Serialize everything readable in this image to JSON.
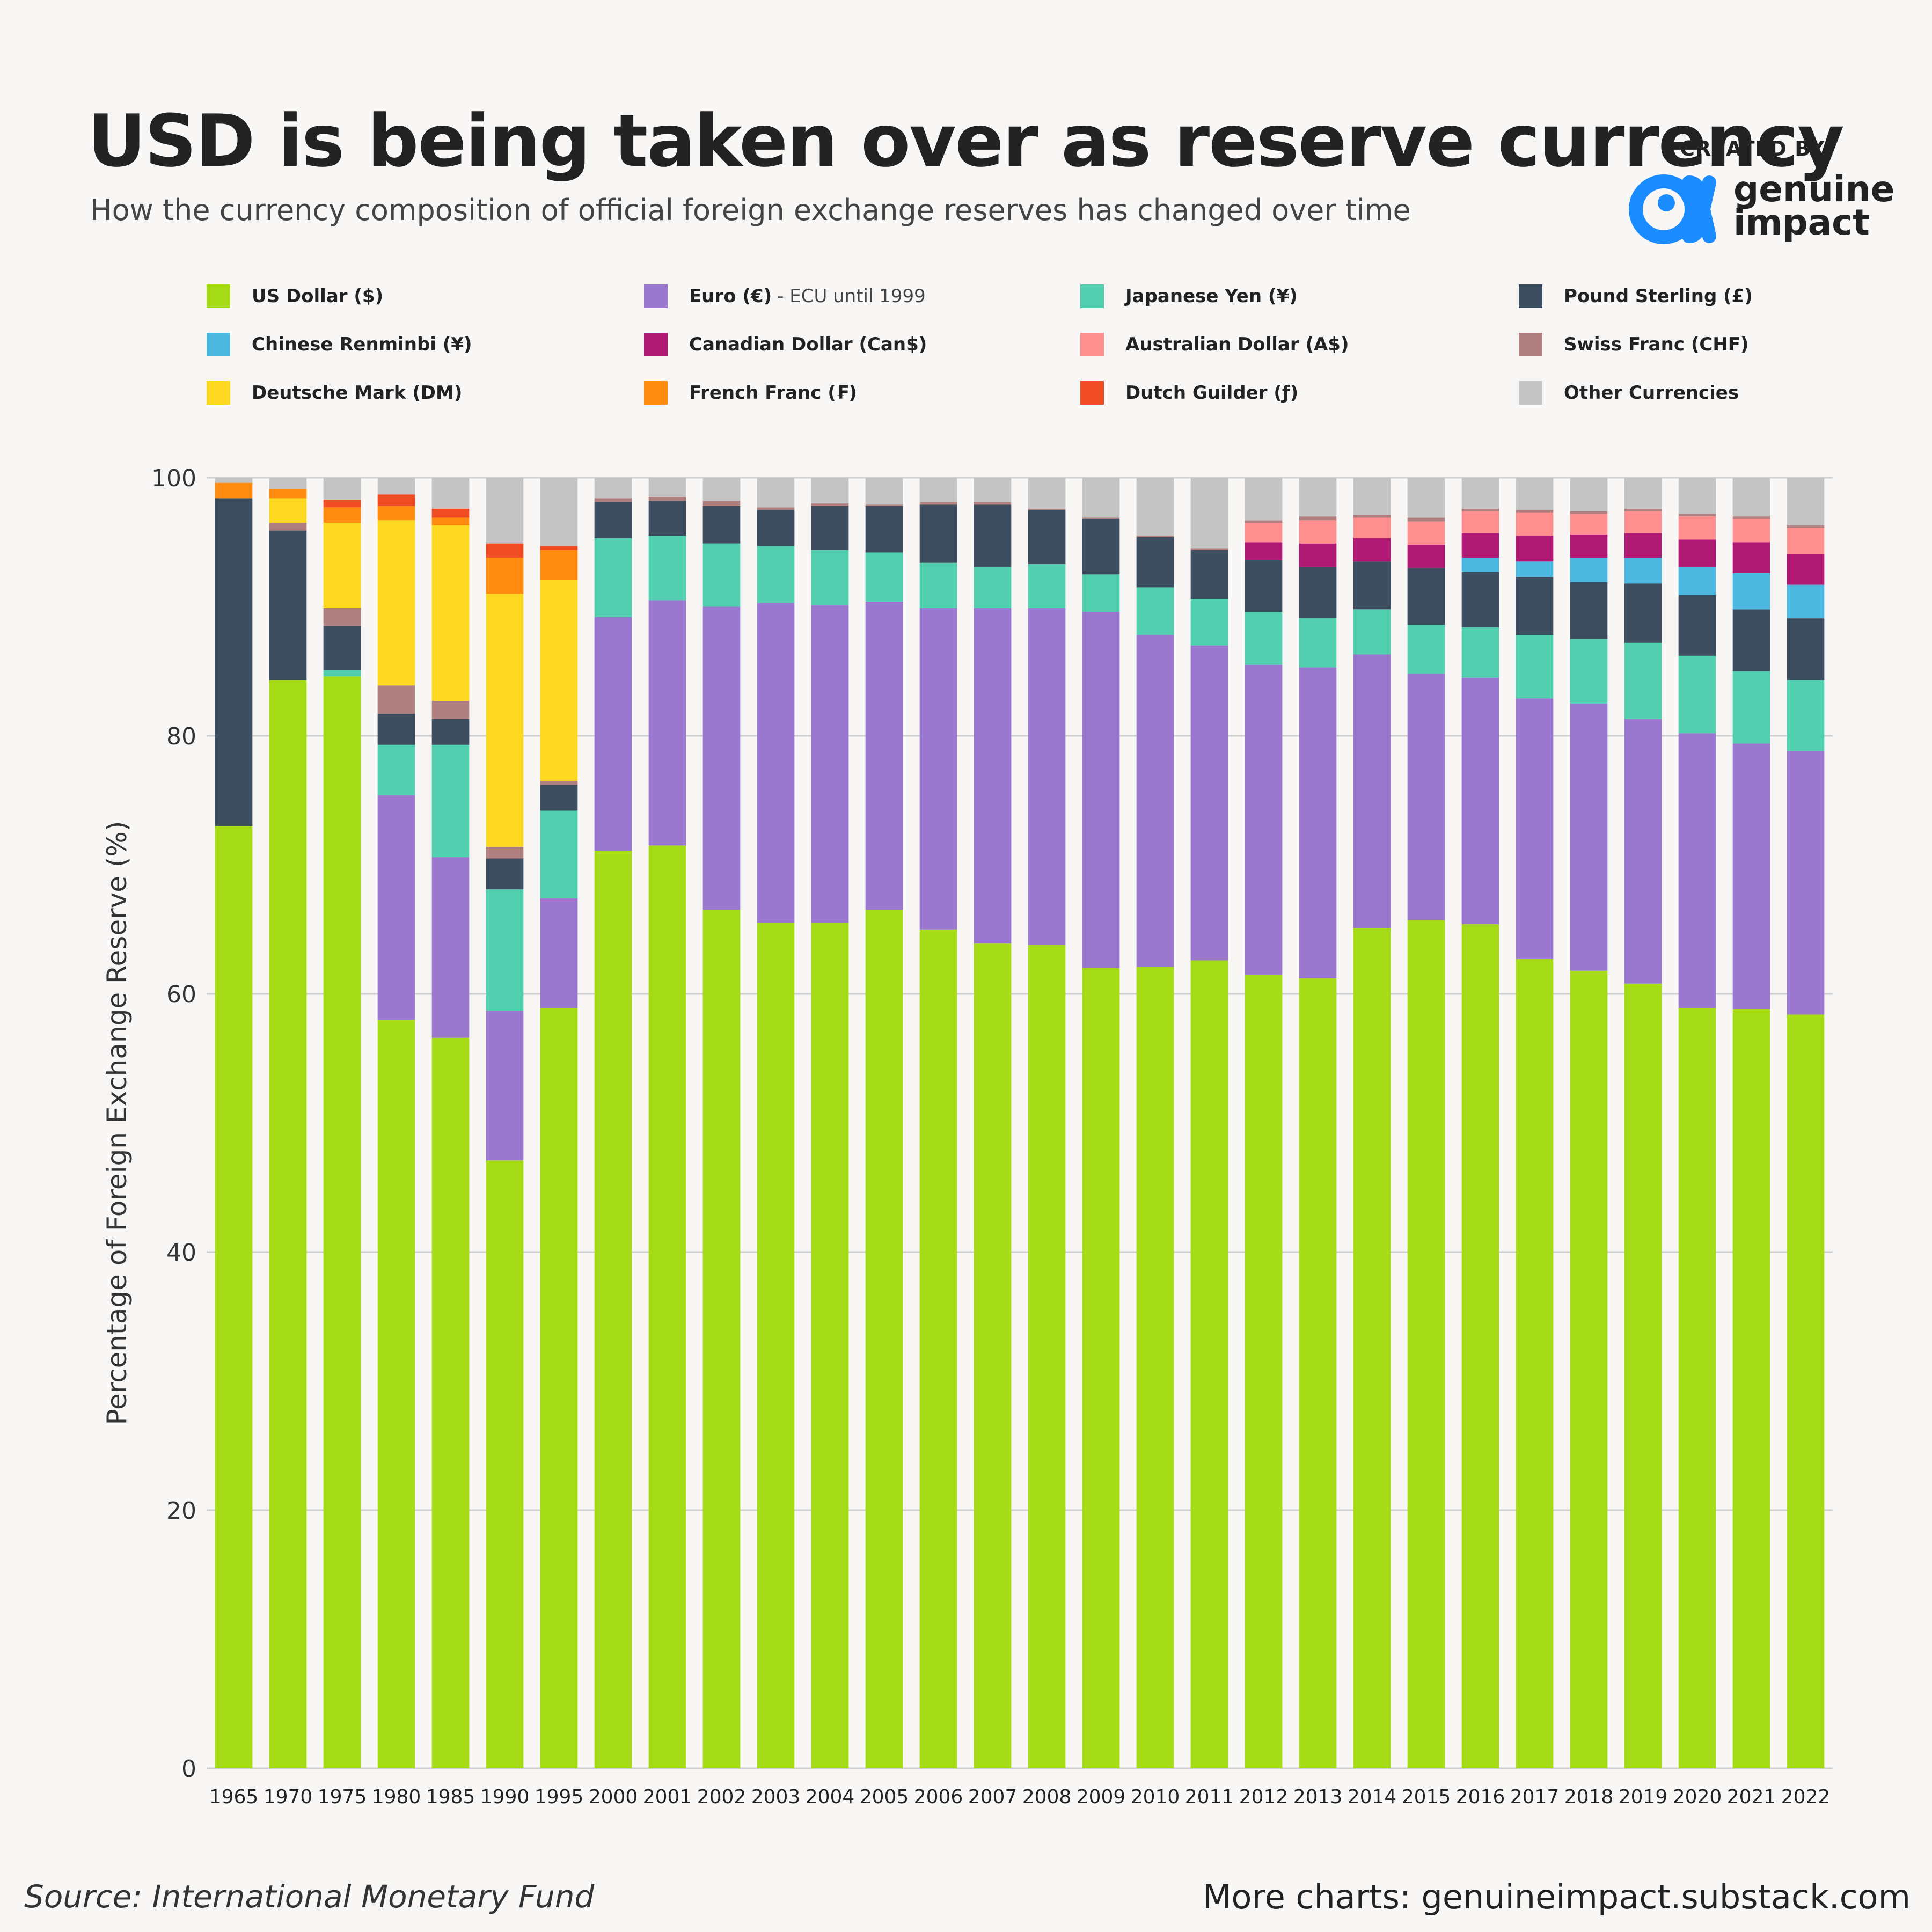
{
  "header": {
    "title": "USD is being taken over as reserve currency",
    "subtitle": "How the currency composition of official foreign exchange reserves has changed over time",
    "created_by": "CREATED BY",
    "brand_line1": "genuine",
    "brand_line2": "impact",
    "brand_color": "#1a8cff"
  },
  "footer": {
    "source": "Source: International Monetary Fund",
    "more": "More charts: genuineimpact.substack.com"
  },
  "legend": [
    {
      "label": "US Dollar ($)",
      "note": "",
      "color": "#a6dc17"
    },
    {
      "label": "Euro (€)",
      "note": "- ECU until 1999",
      "color": "#9b78d0"
    },
    {
      "label": "Japanese Yen (¥)",
      "note": "",
      "color": "#52cfaf"
    },
    {
      "label": "Pound Sterling (£)",
      "note": "",
      "color": "#3c4d5f"
    },
    {
      "label": "Chinese Renminbi (¥)",
      "note": "",
      "color": "#4cb8e0"
    },
    {
      "label": "Canadian Dollar (Can$)",
      "note": "",
      "color": "#b01a74"
    },
    {
      "label": "Australian Dollar (A$)",
      "note": "",
      "color": "#ff8f8f"
    },
    {
      "label": "Swiss Franc (CHF)",
      "note": "",
      "color": "#b08080"
    },
    {
      "label": "Deutsche Mark (DM)",
      "note": "",
      "color": "#fcd920"
    },
    {
      "label": "French Franc (₣)",
      "note": "",
      "color": "#ff8c10"
    },
    {
      "label": "Dutch Guilder (ƒ)",
      "note": "",
      "color": "#f04c24"
    },
    {
      "label": "Other Currencies",
      "note": "",
      "color": "#c4c4c4"
    }
  ],
  "chart_data": {
    "type": "bar",
    "stacked": true,
    "ylabel": "Percentage of Foreign Exchange Reserve (%)",
    "ylim": [
      0,
      100
    ],
    "yticks": [
      0,
      20,
      40,
      60,
      80,
      100
    ],
    "grid": true,
    "legend_position": "top",
    "categories": [
      "1965",
      "1970",
      "1975",
      "1980",
      "1985",
      "1990",
      "1995",
      "2000",
      "2001",
      "2002",
      "2003",
      "2004",
      "2005",
      "2006",
      "2007",
      "2008",
      "2009",
      "2010",
      "2011",
      "2012",
      "2013",
      "2014",
      "2015",
      "2016",
      "2017",
      "2018",
      "2019",
      "2020",
      "2021",
      "2022"
    ],
    "series": [
      {
        "name": "US Dollar ($)",
        "color": "#a6dc17",
        "values": [
          73.0,
          84.3,
          84.6,
          58.0,
          56.6,
          47.1,
          58.9,
          71.1,
          71.5,
          66.5,
          65.5,
          65.5,
          66.5,
          65.0,
          63.9,
          63.8,
          62.0,
          62.1,
          62.6,
          61.5,
          61.2,
          65.1,
          65.7,
          65.4,
          62.7,
          61.8,
          60.8,
          58.9,
          58.8,
          58.4
        ]
      },
      {
        "name": "Euro (€)",
        "color": "#9b78d0",
        "values": [
          0,
          0,
          0,
          17.4,
          14.0,
          11.6,
          8.5,
          18.1,
          19.0,
          23.5,
          24.8,
          24.6,
          23.9,
          24.9,
          26.0,
          26.1,
          27.6,
          25.7,
          24.4,
          24.0,
          24.1,
          21.2,
          19.1,
          19.1,
          20.2,
          20.7,
          20.5,
          21.3,
          20.6,
          20.4
        ]
      },
      {
        "name": "Japanese Yen (¥)",
        "color": "#52cfaf",
        "values": [
          0,
          0,
          0.5,
          3.9,
          8.7,
          9.4,
          6.8,
          6.1,
          5.0,
          4.9,
          4.4,
          4.3,
          3.8,
          3.5,
          3.2,
          3.4,
          2.9,
          3.7,
          3.6,
          4.1,
          3.8,
          3.5,
          3.8,
          3.9,
          4.9,
          5.0,
          5.9,
          6.0,
          5.6,
          5.5
        ]
      },
      {
        "name": "Pound Sterling (£)",
        "color": "#3c4d5f",
        "values": [
          25.4,
          11.6,
          3.4,
          2.4,
          2.0,
          2.4,
          2.0,
          2.8,
          2.7,
          2.9,
          2.8,
          3.4,
          3.6,
          4.5,
          4.8,
          4.2,
          4.3,
          3.9,
          3.8,
          4.0,
          4.0,
          3.7,
          4.4,
          4.3,
          4.5,
          4.4,
          4.6,
          4.7,
          4.8,
          4.8
        ]
      },
      {
        "name": "Chinese Renminbi (¥)",
        "color": "#4cb8e0",
        "values": [
          0,
          0,
          0,
          0,
          0,
          0,
          0,
          0,
          0,
          0,
          0,
          0,
          0,
          0,
          0,
          0,
          0,
          0,
          0,
          0,
          0,
          0,
          0,
          1.1,
          1.2,
          1.9,
          2.0,
          2.2,
          2.8,
          2.6
        ]
      },
      {
        "name": "Canadian Dollar (Can$)",
        "color": "#b01a74",
        "values": [
          0,
          0,
          0,
          0,
          0,
          0,
          0,
          0,
          0,
          0,
          0,
          0,
          0,
          0,
          0,
          0,
          0,
          0,
          0,
          1.4,
          1.8,
          1.8,
          1.8,
          1.9,
          2.0,
          1.8,
          1.9,
          2.1,
          2.4,
          2.4
        ]
      },
      {
        "name": "Australian Dollar (A$)",
        "color": "#ff8f8f",
        "values": [
          0,
          0,
          0,
          0,
          0,
          0,
          0,
          0,
          0,
          0,
          0,
          0,
          0,
          0,
          0,
          0,
          0,
          0,
          0,
          1.5,
          1.8,
          1.6,
          1.8,
          1.7,
          1.8,
          1.6,
          1.7,
          1.8,
          1.8,
          2.0
        ]
      },
      {
        "name": "Swiss Franc (CHF)",
        "color": "#b08080",
        "values": [
          0,
          0.6,
          1.4,
          2.2,
          1.4,
          0.9,
          0.3,
          0.3,
          0.3,
          0.4,
          0.2,
          0.2,
          0.1,
          0.2,
          0.2,
          0.1,
          0.1,
          0.1,
          0.1,
          0.2,
          0.3,
          0.2,
          0.3,
          0.2,
          0.2,
          0.2,
          0.2,
          0.2,
          0.2,
          0.2
        ]
      },
      {
        "name": "Deutsche Mark (DM)",
        "color": "#fcd920",
        "values": [
          0,
          1.9,
          6.6,
          12.8,
          13.6,
          19.6,
          15.6,
          0,
          0,
          0,
          0,
          0,
          0,
          0,
          0,
          0,
          0,
          0,
          0,
          0,
          0,
          0,
          0,
          0,
          0,
          0,
          0,
          0,
          0,
          0
        ]
      },
      {
        "name": "French Franc (₣)",
        "color": "#ff8c10",
        "values": [
          1.2,
          0.7,
          1.2,
          1.1,
          0.6,
          2.8,
          2.3,
          0,
          0,
          0,
          0,
          0,
          0,
          0,
          0,
          0,
          0,
          0,
          0,
          0,
          0,
          0,
          0,
          0,
          0,
          0,
          0,
          0,
          0,
          0
        ]
      },
      {
        "name": "Dutch Guilder (ƒ)",
        "color": "#f04c24",
        "values": [
          0,
          0,
          0.6,
          0.9,
          0.7,
          1.1,
          0.3,
          0,
          0,
          0,
          0,
          0,
          0,
          0,
          0,
          0,
          0,
          0,
          0,
          0,
          0,
          0,
          0,
          0,
          0,
          0,
          0,
          0,
          0,
          0
        ]
      },
      {
        "name": "Other Currencies",
        "color": "#c4c4c4",
        "values": [
          0.4,
          0.9,
          1.7,
          1.3,
          2.4,
          5.1,
          5.3,
          1.6,
          1.5,
          1.8,
          2.3,
          2.0,
          2.1,
          1.9,
          1.9,
          2.4,
          3.1,
          4.5,
          5.5,
          3.3,
          3.0,
          2.9,
          3.1,
          2.4,
          2.5,
          2.6,
          2.4,
          2.8,
          3.0,
          3.7
        ]
      }
    ]
  }
}
